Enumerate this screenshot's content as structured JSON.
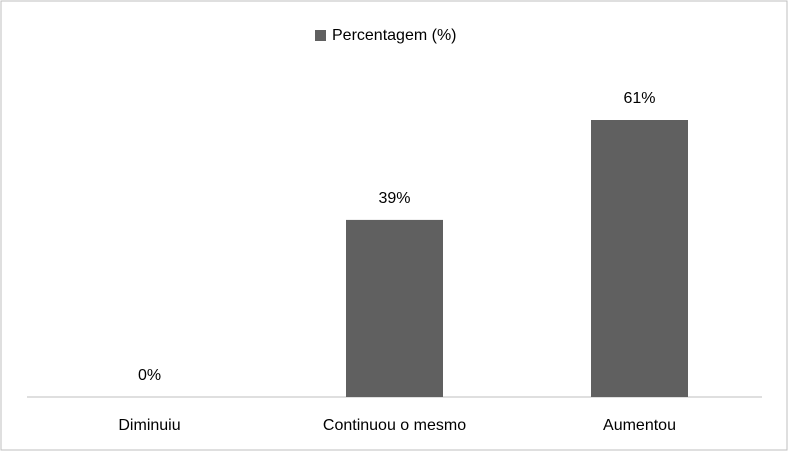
{
  "chart_data": {
    "type": "bar",
    "categories": [
      "Diminuiu",
      "Continuou o mesmo",
      "Aumentou"
    ],
    "series": [
      {
        "name": "Percentagem (%)",
        "color": "#606060",
        "values": [
          0,
          39,
          61
        ],
        "value_labels": [
          "0%",
          "39%",
          "61%"
        ]
      }
    ],
    "legend": "top"
  }
}
